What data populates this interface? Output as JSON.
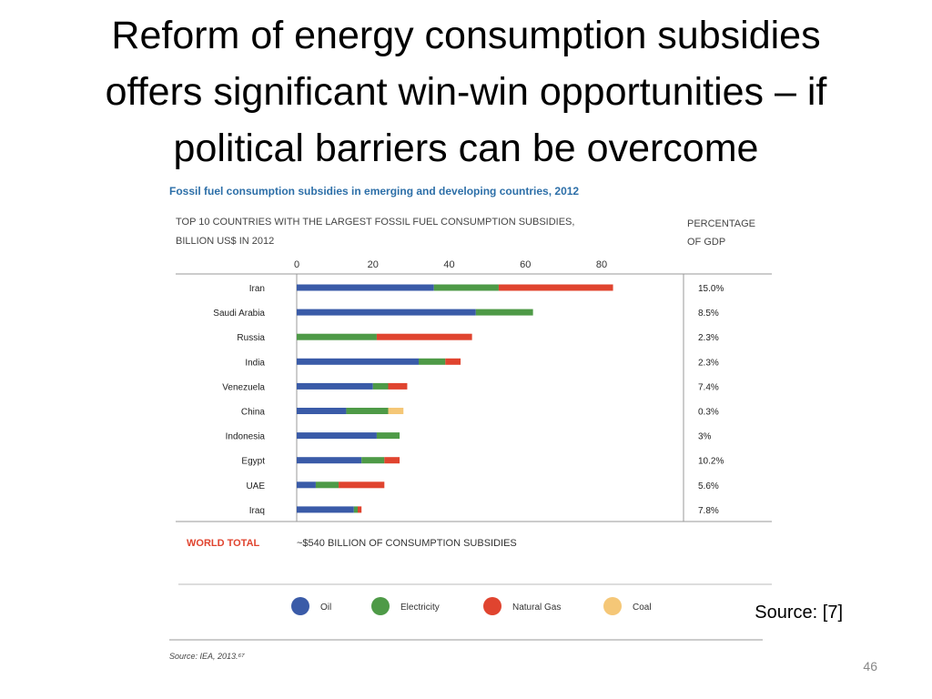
{
  "slide": {
    "title_lines": [
      "Reform of energy consumption subsidies",
      "offers significant win-win opportunities – if",
      "political barriers can be overcome"
    ],
    "source_note": "Source: [7]",
    "page_number": "46"
  },
  "chart_data": {
    "type": "bar",
    "orientation": "horizontal",
    "stacked": true,
    "title": "Fossil fuel consumption subsidies in emerging and developing countries, 2012",
    "subtitle_lines": [
      "TOP 10 COUNTRIES WITH THE LARGEST FOSSIL FUEL CONSUMPTION SUBSIDIES,",
      "BILLION US$ IN 2012"
    ],
    "right_header_lines": [
      "PERCENTAGE",
      "OF GDP"
    ],
    "categories": [
      "Iran",
      "Saudi Arabia",
      "Russia",
      "India",
      "Venezuela",
      "China",
      "Indonesia",
      "Egypt",
      "UAE",
      "Iraq"
    ],
    "series": [
      {
        "name": "Oil",
        "color": "#3a5ba8",
        "values": [
          36,
          47,
          0,
          32,
          20,
          13,
          21,
          17,
          5,
          15
        ]
      },
      {
        "name": "Electricity",
        "color": "#4e9a47",
        "values": [
          17,
          15,
          21,
          7,
          4,
          11,
          6,
          6,
          6,
          1
        ]
      },
      {
        "name": "Natural Gas",
        "color": "#e0442f",
        "values": [
          30,
          0,
          25,
          4,
          5,
          0,
          0,
          4,
          12,
          1
        ]
      },
      {
        "name": "Coal",
        "color": "#f5c777",
        "values": [
          0,
          0,
          0,
          0,
          0,
          4,
          0,
          0,
          0,
          0
        ]
      }
    ],
    "percent_of_gdp": [
      "15.0%",
      "8.5%",
      "2.3%",
      "2.3%",
      "7.4%",
      "0.3%",
      "3%",
      "10.2%",
      "5.6%",
      "7.8%"
    ],
    "x_ticks": [
      "0",
      "20",
      "40",
      "60",
      "80"
    ],
    "xlim": [
      0,
      80
    ],
    "world_total_label": "WORLD TOTAL",
    "world_total_value": "~$540 BILLION OF CONSUMPTION SUBSIDIES",
    "source": "Source: IEA, 2013.⁶⁷",
    "legend_position": "bottom",
    "grid": false
  }
}
